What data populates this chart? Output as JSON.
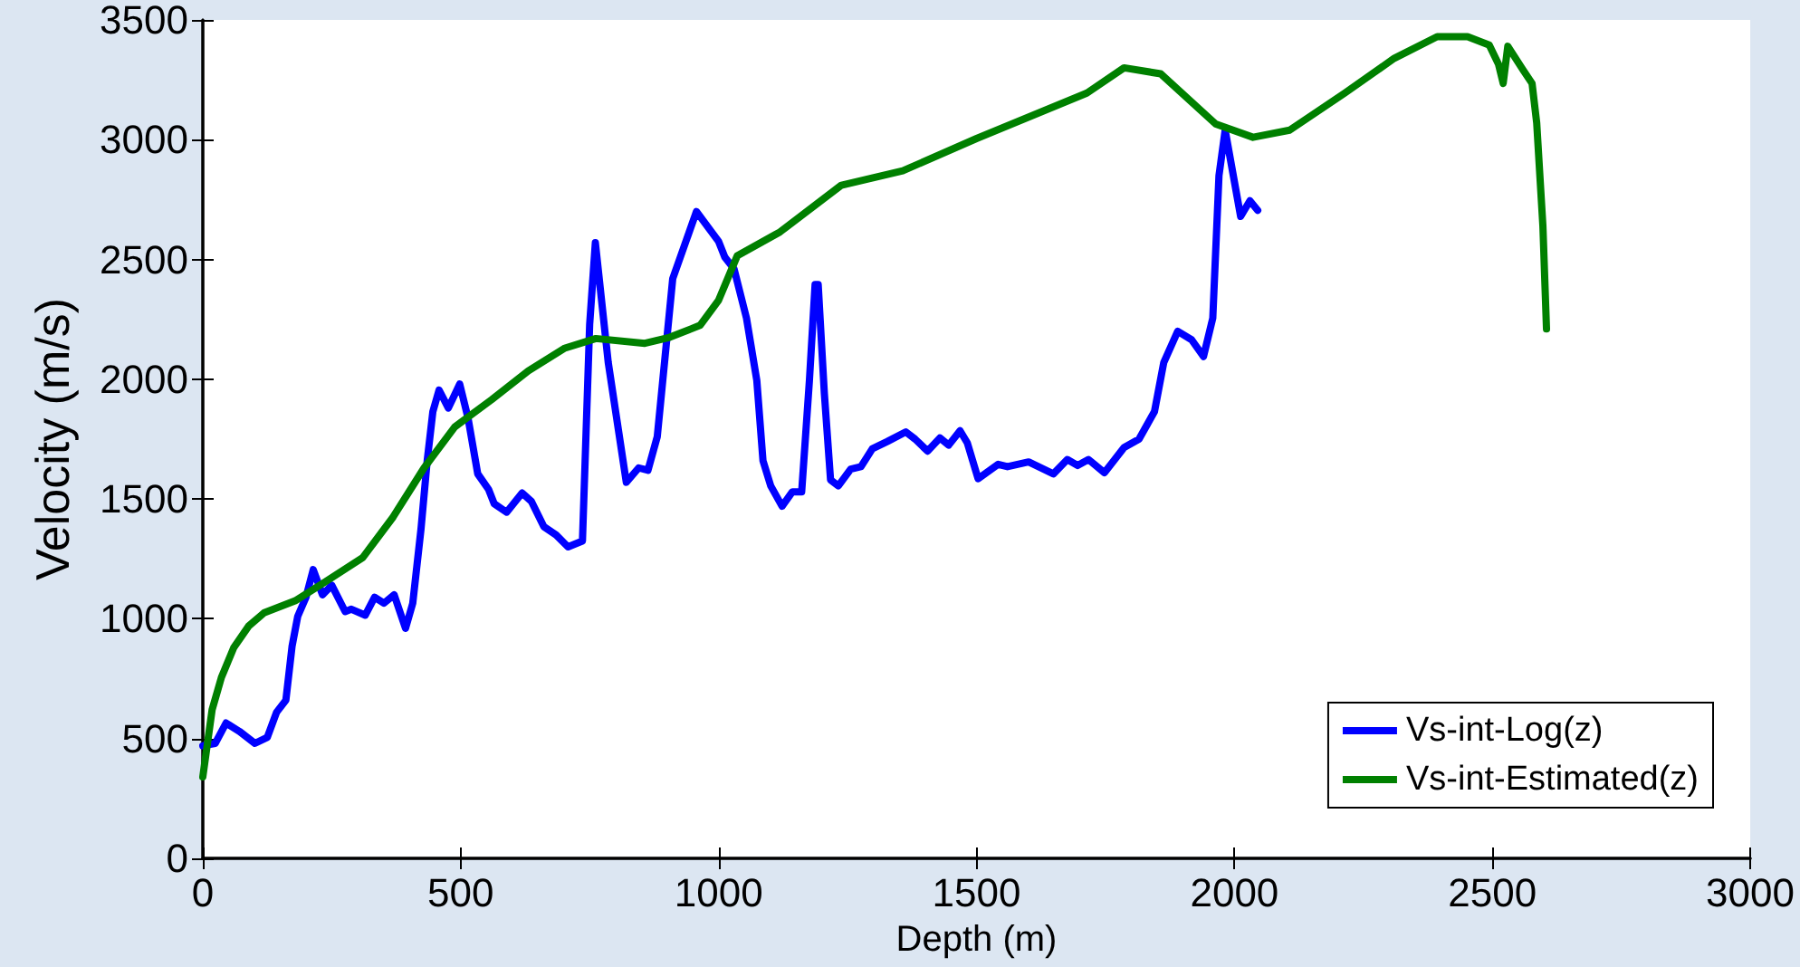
{
  "chart_data": {
    "type": "line",
    "xlabel": "Depth (m)",
    "ylabel": "Velocity (m/s)",
    "xlim": [
      0,
      3000
    ],
    "ylim": [
      0,
      3500
    ],
    "xticks": [
      0,
      500,
      1000,
      1500,
      2000,
      2500,
      3000
    ],
    "yticks": [
      0,
      500,
      1000,
      1500,
      2000,
      2500,
      3000,
      3500
    ],
    "grid": false,
    "legend": "bottom right",
    "marker": "none",
    "line_style": "solid",
    "series": [
      {
        "name": "Vs-int-Log(z)",
        "color": "#0000ff",
        "x": [
          0,
          24,
          45,
          71,
          101,
          125,
          143,
          161,
          173,
          184,
          200,
          214,
          232,
          250,
          276,
          288,
          315,
          333,
          351,
          371,
          393,
          407,
          423,
          435,
          446,
          458,
          476,
          498,
          514,
          533,
          554,
          565,
          589,
          619,
          637,
          661,
          685,
          708,
          736,
          750,
          761,
          786,
          821,
          845,
          863,
          881,
          911,
          957,
          1000,
          1012,
          1030,
          1054,
          1074,
          1086,
          1101,
          1123,
          1143,
          1161,
          1176,
          1187,
          1193,
          1205,
          1217,
          1232,
          1256,
          1276,
          1298,
          1327,
          1363,
          1381,
          1405,
          1429,
          1446,
          1468,
          1482,
          1503,
          1542,
          1560,
          1601,
          1649,
          1676,
          1696,
          1717,
          1748,
          1786,
          1815,
          1845,
          1863,
          1890,
          1917,
          1940,
          1958,
          1970,
          1982,
          2012,
          2030,
          2045
        ],
        "values": [
          470,
          480,
          565,
          530,
          480,
          505,
          610,
          660,
          885,
          1010,
          1090,
          1205,
          1100,
          1140,
          1030,
          1040,
          1015,
          1090,
          1065,
          1100,
          960,
          1065,
          1375,
          1660,
          1865,
          1955,
          1880,
          1980,
          1840,
          1605,
          1540,
          1480,
          1445,
          1525,
          1490,
          1385,
          1350,
          1300,
          1325,
          2230,
          2570,
          2070,
          1570,
          1630,
          1620,
          1760,
          2420,
          2700,
          2575,
          2510,
          2460,
          2255,
          1995,
          1660,
          1555,
          1470,
          1530,
          1530,
          1995,
          2395,
          2395,
          1940,
          1580,
          1555,
          1625,
          1635,
          1710,
          1740,
          1780,
          1750,
          1700,
          1755,
          1725,
          1785,
          1735,
          1585,
          1645,
          1635,
          1655,
          1605,
          1665,
          1640,
          1665,
          1610,
          1715,
          1750,
          1865,
          2070,
          2200,
          2165,
          2095,
          2255,
          2850,
          3040,
          2680,
          2745,
          2705
        ]
      },
      {
        "name": "Vs-int-Estimated(z)",
        "color": "#008000",
        "x": [
          0,
          18,
          36,
          60,
          89,
          119,
          179,
          238,
          310,
          369,
          429,
          488,
          560,
          631,
          702,
          762,
          857,
          905,
          964,
          1000,
          1036,
          1119,
          1238,
          1357,
          1500,
          1714,
          1786,
          1857,
          1964,
          2036,
          2107,
          2214,
          2310,
          2393,
          2452,
          2494,
          2512,
          2521,
          2530,
          2560,
          2577,
          2586,
          2598,
          2605
        ],
        "values": [
          340,
          620,
          755,
          880,
          970,
          1025,
          1075,
          1155,
          1255,
          1425,
          1630,
          1800,
          1915,
          2035,
          2130,
          2170,
          2150,
          2175,
          2225,
          2330,
          2515,
          2615,
          2810,
          2870,
          3005,
          3195,
          3300,
          3275,
          3065,
          3010,
          3040,
          3195,
          3340,
          3430,
          3430,
          3395,
          3315,
          3235,
          3390,
          3290,
          3235,
          3070,
          2640,
          2210
        ]
      }
    ]
  }
}
